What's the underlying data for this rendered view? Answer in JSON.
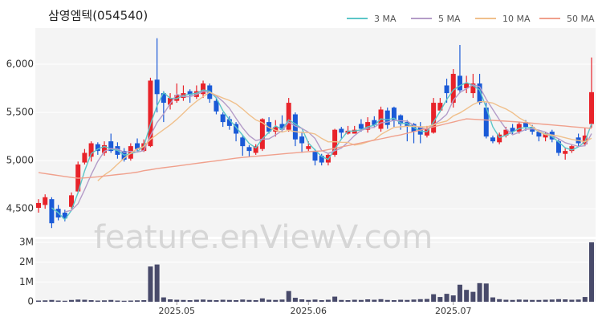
{
  "chart_data": [
    {
      "type": "candlestick",
      "title": "삼영엠텍(054540)",
      "watermark": "feature.enViewV.com",
      "up_color": "#e8232a",
      "down_color": "#1a5ad7",
      "open": [
        4510,
        4540,
        4600,
        4500,
        4460,
        4520,
        4680,
        4980,
        5040,
        5170,
        5080,
        5200,
        5150,
        5100,
        5020,
        5180,
        5100,
        5150,
        5840,
        5700,
        5580,
        5620,
        5650,
        5720,
        5660,
        5690,
        5780,
        5620,
        5480,
        5430,
        5380,
        5240,
        5140,
        5080,
        5120,
        5400,
        5300,
        5380,
        5320,
        5480,
        5250,
        5120,
        5100,
        5050,
        4980,
        5060,
        5330,
        5280,
        5280,
        5380,
        5320,
        5420,
        5330,
        5520,
        5550,
        5470,
        5400,
        5380,
        5350,
        5260,
        5290,
        5520,
        5780,
        5600,
        5880,
        5750,
        5700,
        5800,
        5550,
        5240,
        5190,
        5260,
        5340,
        5300,
        5400,
        5350,
        5300,
        5240,
        5300,
        5200,
        5070,
        5100,
        5240,
        5170,
        5380
      ],
      "high": [
        4600,
        4650,
        4620,
        4540,
        4490,
        4670,
        4990,
        5120,
        5200,
        5190,
        5200,
        5280,
        5190,
        5130,
        5180,
        5230,
        5220,
        5860,
        6270,
        5720,
        5700,
        5800,
        5780,
        5740,
        5780,
        5830,
        5800,
        5650,
        5500,
        5460,
        5400,
        5260,
        5160,
        5170,
        5440,
        5450,
        5420,
        5470,
        5650,
        5500,
        5300,
        5200,
        5120,
        5070,
        5080,
        5330,
        5350,
        5360,
        5360,
        5430,
        5450,
        5460,
        5560,
        5550,
        5560,
        5480,
        5420,
        5390,
        5400,
        5360,
        5650,
        5650,
        5850,
        5950,
        6200,
        5880,
        5900,
        5900,
        5600,
        5260,
        5290,
        5350,
        5380,
        5400,
        5420,
        5370,
        5310,
        5300,
        5320,
        5220,
        5130,
        5170,
        5280,
        5340,
        6070
      ],
      "low": [
        4460,
        4500,
        4300,
        4380,
        4370,
        4500,
        4660,
        4960,
        4990,
        5060,
        5050,
        5080,
        5020,
        4990,
        5000,
        5100,
        5090,
        5140,
        5500,
        5400,
        5530,
        5600,
        5620,
        5600,
        5640,
        5650,
        5600,
        5480,
        5350,
        5320,
        5200,
        5050,
        5040,
        5060,
        5100,
        5280,
        5250,
        5300,
        5300,
        5150,
        5080,
        5100,
        4950,
        4950,
        4950,
        5040,
        5230,
        5270,
        5290,
        5300,
        5290,
        5340,
        5300,
        5330,
        5350,
        5320,
        5200,
        5180,
        5180,
        5240,
        5280,
        5500,
        5600,
        5550,
        5700,
        5700,
        5650,
        5580,
        5230,
        5180,
        5170,
        5240,
        5270,
        5280,
        5310,
        5270,
        5200,
        5200,
        5190,
        5050,
        5010,
        5080,
        5150,
        5150,
        5340
      ],
      "close": [
        4560,
        4620,
        4350,
        4410,
        4400,
        4640,
        4960,
        5080,
        5180,
        5100,
        5160,
        5100,
        5060,
        5010,
        5150,
        5120,
        5180,
        5830,
        5690,
        5600,
        5650,
        5680,
        5700,
        5680,
        5720,
        5800,
        5640,
        5510,
        5400,
        5360,
        5280,
        5150,
        5100,
        5150,
        5430,
        5300,
        5350,
        5320,
        5600,
        5220,
        5180,
        5150,
        5000,
        4980,
        5060,
        5320,
        5290,
        5310,
        5320,
        5330,
        5400,
        5370,
        5530,
        5370,
        5420,
        5380,
        5350,
        5300,
        5270,
        5330,
        5600,
        5600,
        5700,
        5900,
        5730,
        5800,
        5800,
        5600,
        5250,
        5200,
        5270,
        5320,
        5300,
        5380,
        5350,
        5300,
        5250,
        5280,
        5220,
        5080,
        5100,
        5150,
        5180,
        5260,
        5710
      ],
      "series": [
        {
          "name": "3 MA",
          "color": "#5cc6c8",
          "values": [
            null,
            null,
            4510,
            4460,
            4387,
            4483,
            4667,
            4893,
            5073,
            5120,
            5147,
            5120,
            5107,
            5057,
            5073,
            5093,
            5150,
            5377,
            5567,
            5707,
            5647,
            5643,
            5677,
            5687,
            5700,
            5733,
            5720,
            5650,
            5517,
            5423,
            5347,
            5263,
            5177,
            5133,
            5227,
            5293,
            5360,
            5323,
            5423,
            5380,
            5333,
            5183,
            5110,
            5043,
            5013,
            5120,
            5223,
            5307,
            5307,
            5320,
            5350,
            5367,
            5433,
            5423,
            5440,
            5390,
            5383,
            5343,
            5307,
            5300,
            5400,
            5510,
            5633,
            5733,
            5777,
            5810,
            5777,
            5733,
            5550,
            5350,
            5240,
            5263,
            5297,
            5333,
            5343,
            5343,
            5300,
            5277,
            5250,
            5193,
            5133,
            5110,
            5143,
            5197,
            5383
          ]
        },
        {
          "name": "5 MA",
          "color": "#b49cc8",
          "values": [
            null,
            null,
            null,
            null,
            4468,
            4484,
            4552,
            4698,
            4854,
            4992,
            5096,
            5124,
            5120,
            5086,
            5096,
            5088,
            5104,
            5258,
            5394,
            5484,
            5590,
            5690,
            5664,
            5662,
            5686,
            5716,
            5708,
            5670,
            5614,
            5542,
            5438,
            5340,
            5258,
            5208,
            5222,
            5226,
            5266,
            5310,
            5400,
            5358,
            5334,
            5294,
            5230,
            5106,
            5074,
            5102,
            5130,
            5192,
            5260,
            5314,
            5334,
            5346,
            5392,
            5400,
            5418,
            5414,
            5410,
            5364,
            5344,
            5326,
            5370,
            5420,
            5480,
            5626,
            5706,
            5746,
            5786,
            5766,
            5636,
            5530,
            5424,
            5328,
            5268,
            5294,
            5324,
            5330,
            5316,
            5296,
            5260,
            5226,
            5186,
            5166,
            5146,
            5154,
            5280
          ]
        },
        {
          "name": "10 MA",
          "color": "#f0c08c",
          "values": [
            null,
            null,
            null,
            null,
            null,
            null,
            null,
            null,
            null,
            4790,
            4850,
            4898,
            4963,
            5024,
            5075,
            5123,
            5145,
            5220,
            5271,
            5321,
            5370,
            5428,
            5492,
            5559,
            5616,
            5664,
            5710,
            5678,
            5649,
            5625,
            5588,
            5535,
            5475,
            5422,
            5393,
            5343,
            5314,
            5295,
            5315,
            5301,
            5291,
            5291,
            5276,
            5231,
            5194,
            5196,
            5190,
            5189,
            5161,
            5172,
            5194,
            5216,
            5270,
            5309,
            5345,
            5351,
            5357,
            5356,
            5351,
            5351,
            5371,
            5394,
            5411,
            5464,
            5495,
            5537,
            5582,
            5612,
            5610,
            5597,
            5564,
            5536,
            5496,
            5444,
            5406,
            5356,
            5301,
            5269,
            5266,
            5254,
            5237,
            5220,
            5208,
            5196,
            5232
          ]
        },
        {
          "name": "50 MA",
          "color": "#f0a08c",
          "values": [
            4875,
            4865,
            4855,
            4845,
            4835,
            4825,
            4817,
            4820,
            4825,
            4832,
            4840,
            4848,
            4855,
            4862,
            4870,
            4880,
            4895,
            4905,
            4917,
            4926,
            4935,
            4944,
            4953,
            4962,
            4971,
            4980,
            4989,
            4998,
            5007,
            5016,
            5025,
            5033,
            5039,
            5045,
            5051,
            5057,
            5063,
            5069,
            5075,
            5081,
            5087,
            5093,
            5097,
            5100,
            5114,
            5128,
            5142,
            5156,
            5170,
            5184,
            5198,
            5212,
            5226,
            5240,
            5254,
            5267,
            5284,
            5300,
            5317,
            5334,
            5350,
            5367,
            5384,
            5400,
            5417,
            5433,
            5429,
            5425,
            5421,
            5417,
            5413,
            5409,
            5405,
            5400,
            5394,
            5388,
            5382,
            5376,
            5370,
            5364,
            5358,
            5352,
            5346,
            5340,
            5333
          ]
        }
      ],
      "ylim": [
        4210,
        6375
      ],
      "yticks": [
        {
          "value": 4500,
          "label": "4,500"
        },
        {
          "value": 5000,
          "label": "5,000"
        },
        {
          "value": 5500,
          "label": "5,500"
        },
        {
          "value": 6000,
          "label": "6,000"
        }
      ],
      "grid": true
    },
    {
      "type": "bar",
      "color": "#484a6a",
      "categories": [
        null,
        null,
        null,
        null,
        null,
        null,
        null,
        null,
        null,
        null,
        null,
        null,
        null,
        null,
        null,
        null,
        null,
        null,
        null,
        null,
        null,
        "2025.05",
        null,
        null,
        null,
        null,
        null,
        null,
        null,
        null,
        null,
        null,
        null,
        null,
        null,
        null,
        null,
        null,
        null,
        null,
        null,
        "2025.06",
        null,
        null,
        null,
        null,
        null,
        null,
        null,
        null,
        null,
        null,
        null,
        null,
        null,
        null,
        null,
        null,
        null,
        null,
        null,
        null,
        null,
        "2025.07",
        null,
        null,
        null,
        null,
        null,
        null,
        null,
        null,
        null,
        null,
        null,
        null,
        null,
        null,
        null,
        null,
        null,
        null,
        null,
        null,
        null
      ],
      "values": [
        60000,
        70000,
        90000,
        60000,
        50000,
        90000,
        110000,
        100000,
        80000,
        60000,
        70000,
        90000,
        60000,
        50000,
        60000,
        70000,
        80000,
        1780000,
        1880000,
        220000,
        120000,
        100000,
        90000,
        80000,
        100000,
        110000,
        90000,
        80000,
        100000,
        90000,
        80000,
        110000,
        90000,
        80000,
        170000,
        100000,
        90000,
        110000,
        540000,
        200000,
        120000,
        90000,
        110000,
        80000,
        100000,
        260000,
        90000,
        80000,
        100000,
        90000,
        120000,
        100000,
        130000,
        90000,
        80000,
        100000,
        90000,
        110000,
        130000,
        140000,
        380000,
        240000,
        400000,
        320000,
        860000,
        600000,
        500000,
        940000,
        920000,
        220000,
        130000,
        100000,
        90000,
        110000,
        100000,
        90000,
        90000,
        100000,
        110000,
        130000,
        120000,
        100000,
        110000,
        240000,
        3000000
      ],
      "ylim": [
        0,
        3160000
      ],
      "yticks": [
        0,
        {
          "value": 1000000,
          "label": "1M"
        },
        {
          "value": 2000000,
          "label": "2M"
        },
        {
          "value": 3000000,
          "label": "3M"
        }
      ],
      "grid": true
    }
  ]
}
